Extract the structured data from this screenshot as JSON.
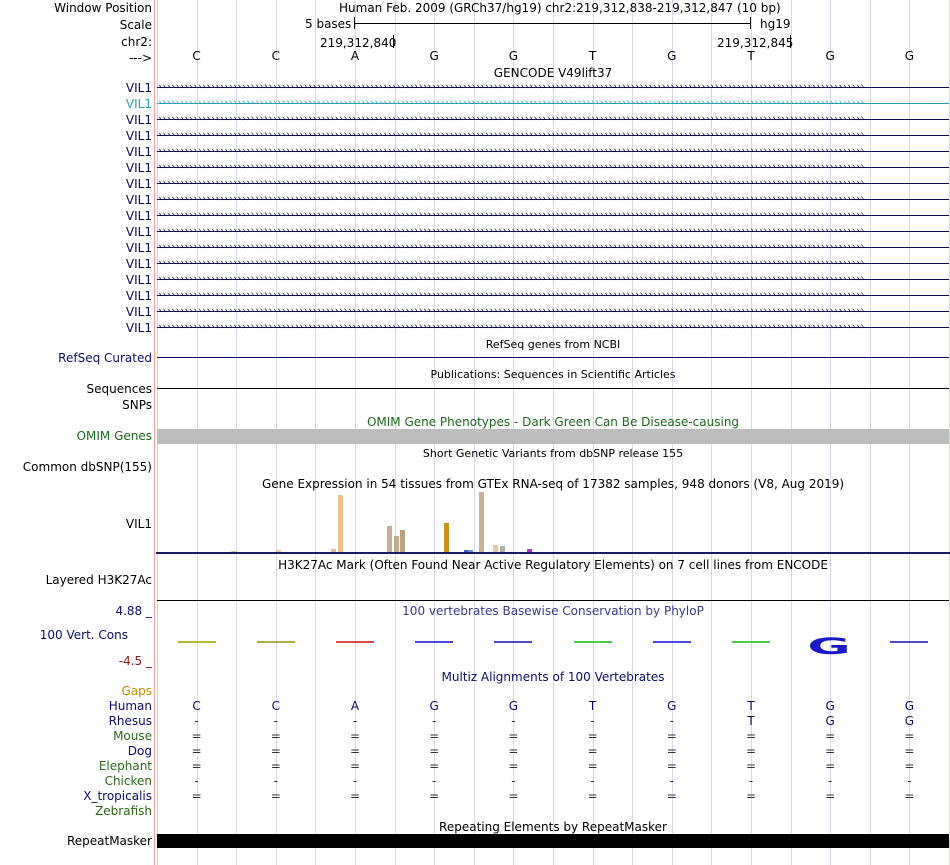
{
  "header": {
    "window_position_label": "Window Position",
    "assembly_text": "Human Feb. 2009 (GRCh37/hg19)   chr2:219,312,838-219,312,847 (10 bp)",
    "scale_label": "Scale",
    "scale_text": "5 bases",
    "scale_db": "hg19",
    "chrom_label": "chr2:",
    "pos_left": "219,312,840",
    "pos_right": "219,312,845",
    "strand_label": "--->"
  },
  "sequence": [
    "C",
    "C",
    "A",
    "G",
    "G",
    "T",
    "G",
    "T",
    "G",
    "G"
  ],
  "gencode": {
    "title": "GENCODE V49lift37",
    "tracks": [
      "VIL1",
      "VIL1",
      "VIL1",
      "VIL1",
      "VIL1",
      "VIL1",
      "VIL1",
      "VIL1",
      "VIL1",
      "VIL1",
      "VIL1",
      "VIL1",
      "VIL1",
      "VIL1",
      "VIL1",
      "VIL1"
    ],
    "highlight_index": 1,
    "color": "#0d0d50",
    "highlight_color": "#2aa0b4"
  },
  "refseq": {
    "label": "RefSeq Curated",
    "title": "RefSeq genes from NCBI"
  },
  "publications": {
    "label": "Sequences",
    "title": "Publications: Sequences in Scientific Articles"
  },
  "snps_label": "SNPs",
  "omim": {
    "title": "OMIM Gene Phenotypes - Dark Green Can Be Disease-causing",
    "label": "OMIM Genes",
    "color": "#bdbdbd"
  },
  "dbsnp": {
    "title": "Short Genetic Variants from dbSNP release 155",
    "label": "Common dbSNP(155)"
  },
  "gtex": {
    "title": "Gene Expression in 54 tissues from GTEx RNA-seq of 17382 samples, 948 donors (V8, Aug 2019)",
    "label": "VIL1",
    "bars": [
      {
        "v": 0.02,
        "c": "#ebbd72"
      },
      {
        "v": 0.04,
        "c": "#eac8a0"
      },
      {
        "v": 0.06,
        "c": "#e0c39a"
      },
      {
        "v": 1.0,
        "c": "#efc28e"
      },
      {
        "v": 0.45,
        "c": "#c7ae94"
      },
      {
        "v": 0.28,
        "c": "#c5ab90"
      },
      {
        "v": 0.38,
        "c": "#bda383"
      },
      {
        "v": 0.5,
        "c": "#c9921c"
      },
      {
        "v": 0.04,
        "c": "#3a5ec9"
      },
      {
        "v": 0.03,
        "c": "#7a8fbb"
      },
      {
        "v": 1.05,
        "c": "#cbb29a"
      },
      {
        "v": 0.12,
        "c": "#e8c8ac"
      },
      {
        "v": 0.1,
        "c": "#b8b0a8"
      },
      {
        "v": 0.06,
        "c": "#b833cc"
      }
    ]
  },
  "h3k27ac": {
    "title": "H3K27Ac Mark (Often Found Near Active Regulatory Elements) on 7 cell lines from ENCODE",
    "label": "Layered H3K27Ac"
  },
  "conservation": {
    "max": "4.88 _",
    "min": "-4.5 _",
    "title": "100 vertebrates Basewise Conservation by PhyloP",
    "label": "100 Vert. Cons",
    "marks": [
      {
        "col": 0,
        "c": "#a8a800"
      },
      {
        "col": 1,
        "c": "#9a9a20"
      },
      {
        "col": 2,
        "c": "#d02020"
      },
      {
        "col": 3,
        "c": "#2020d0"
      },
      {
        "col": 4,
        "c": "#2020c0"
      },
      {
        "col": 5,
        "c": "#20c020"
      },
      {
        "col": 6,
        "c": "#2020d0"
      },
      {
        "col": 7,
        "c": "#20c020"
      },
      {
        "col": 9,
        "c": "#2020c0"
      }
    ],
    "logo_glyph": "G",
    "logo_color": "#1a1ac8"
  },
  "multiz": {
    "title": "Multiz Alignments of 100 Vertebrates",
    "gaps_label": "Gaps",
    "species": [
      {
        "name": "Human",
        "color": "#0d0d6b",
        "row": [
          "C",
          "C",
          "A",
          "G",
          "G",
          "T",
          "G",
          "T",
          "G",
          "G"
        ]
      },
      {
        "name": "Rhesus",
        "color": "#0d0d6b",
        "row": [
          "-",
          "-",
          "-",
          "-",
          "-",
          "-",
          "-",
          "T",
          "G",
          "G"
        ]
      },
      {
        "name": "Mouse",
        "color": "#2d6a1a",
        "row": [
          "=",
          "=",
          "=",
          "=",
          "=",
          "=",
          "=",
          "=",
          "=",
          "="
        ]
      },
      {
        "name": "Dog",
        "color": "#0d0d6b",
        "row": [
          "=",
          "=",
          "=",
          "=",
          "=",
          "=",
          "=",
          "=",
          "=",
          "="
        ]
      },
      {
        "name": "Elephant",
        "color": "#2d6a1a",
        "row": [
          "=",
          "=",
          "=",
          "=",
          "=",
          "=",
          "=",
          "=",
          "=",
          "="
        ]
      },
      {
        "name": "Chicken",
        "color": "#2d6a1a",
        "row": [
          "-",
          "-",
          "-",
          "-",
          "-",
          "-",
          "-",
          "-",
          "-",
          "-"
        ]
      },
      {
        "name": "X_tropicalis",
        "color": "#0d0d6b",
        "row": [
          "=",
          "=",
          "=",
          "=",
          "=",
          "=",
          "=",
          "=",
          "=",
          "="
        ]
      },
      {
        "name": "Zebrafish",
        "color": "#2d6a1a",
        "row": [
          "",
          "",
          "",
          "",
          "",
          "",
          "",
          "",
          "",
          ""
        ]
      }
    ]
  },
  "repeatmasker": {
    "title": "Repeating Elements by RepeatMasker",
    "label": "RepeatMasker"
  }
}
